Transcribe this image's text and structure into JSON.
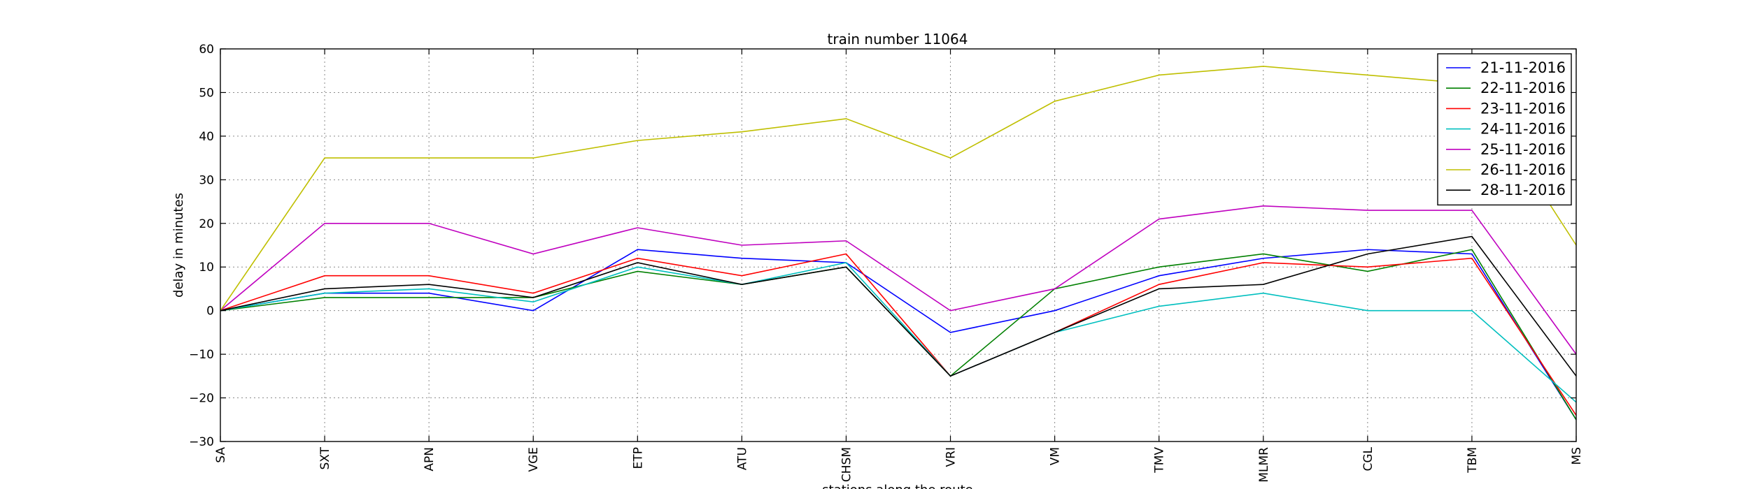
{
  "chart_data": {
    "type": "line",
    "title": "train number 11064",
    "xlabel": "stations along the route",
    "ylabel": "delay in minutes",
    "categories": [
      "SA",
      "SXT",
      "APN",
      "VGE",
      "ETP",
      "ATU",
      "CHSM",
      "VRI",
      "VM",
      "TMV",
      "MLMR",
      "CGL",
      "TBM",
      "MS"
    ],
    "ylim": [
      -30,
      60
    ],
    "yticks": [
      -30,
      -20,
      -10,
      0,
      10,
      20,
      30,
      40,
      50,
      60
    ],
    "grid": true,
    "legend_position": "top-right",
    "series": [
      {
        "name": "21-11-2016",
        "color": "#0000ff",
        "values": [
          0,
          4,
          4,
          0,
          14,
          12,
          11,
          -5,
          0,
          8,
          12,
          14,
          13,
          -25
        ]
      },
      {
        "name": "22-11-2016",
        "color": "#008000",
        "values": [
          0,
          3,
          3,
          3,
          9,
          6,
          10,
          -15,
          5,
          10,
          13,
          9,
          14,
          -25
        ]
      },
      {
        "name": "23-11-2016",
        "color": "#ff0000",
        "values": [
          0,
          8,
          8,
          4,
          12,
          8,
          13,
          -15,
          -5,
          6,
          11,
          10,
          12,
          -24
        ]
      },
      {
        "name": "24-11-2016",
        "color": "#00bfbf",
        "values": [
          0,
          4,
          5,
          2,
          10,
          6,
          11,
          -15,
          -5,
          1,
          4,
          0,
          0,
          -21
        ]
      },
      {
        "name": "25-11-2016",
        "color": "#bf00bf",
        "values": [
          0,
          20,
          20,
          13,
          19,
          15,
          16,
          0,
          5,
          21,
          24,
          23,
          23,
          -10
        ]
      },
      {
        "name": "26-11-2016",
        "color": "#bfbf00",
        "values": [
          0,
          35,
          35,
          35,
          39,
          41,
          44,
          35,
          48,
          54,
          56,
          54,
          52,
          15
        ]
      },
      {
        "name": "28-11-2016",
        "color": "#000000",
        "values": [
          0,
          5,
          6,
          3,
          11,
          6,
          10,
          -15,
          -5,
          5,
          6,
          13,
          17,
          -15
        ]
      }
    ]
  }
}
